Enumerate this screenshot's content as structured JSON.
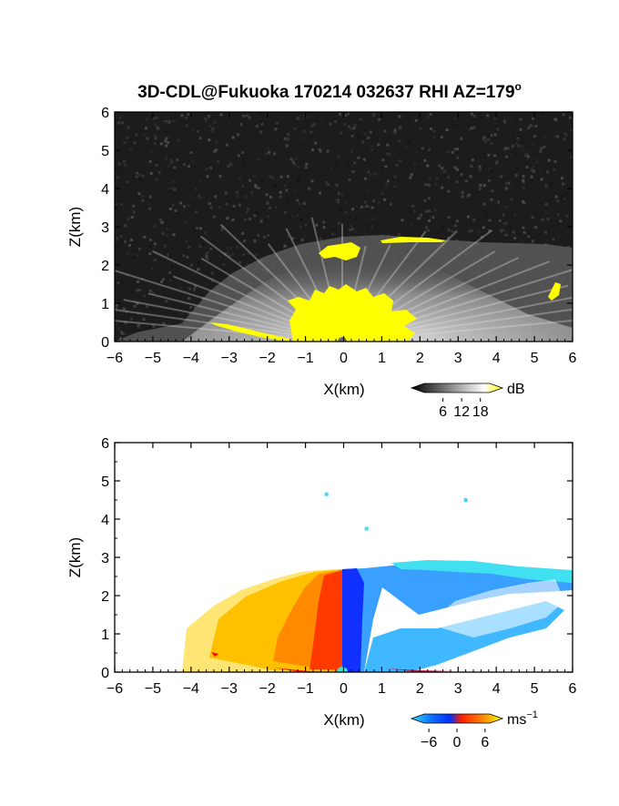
{
  "figure": {
    "title": "3D-CDL@Fukuoka 170214 032637 RHI AZ=179",
    "title_degree": "o"
  },
  "chart_data": [
    {
      "type": "heatmap",
      "panel": "top",
      "quantity": "backscatter intensity",
      "xlabel": "X(km)",
      "ylabel": "Z(km)",
      "xlim": [
        -6,
        6
      ],
      "ylim": [
        0,
        6
      ],
      "xticks": [
        -6,
        -5,
        -4,
        -3,
        -2,
        -1,
        0,
        1,
        2,
        3,
        4,
        5,
        6
      ],
      "yticks": [
        0,
        1,
        2,
        3,
        4,
        5,
        6
      ],
      "background_color": "#1c1c1c",
      "colorbar": {
        "unit": "dB",
        "ticks": [
          6,
          12,
          18
        ],
        "range": [
          0,
          21
        ],
        "colors": [
          "#000000",
          "#ffffff",
          "#ffff00"
        ]
      },
      "features": [
        {
          "label": "near-range high intensity (yellow)",
          "x_range": [
            -1.2,
            1.7
          ],
          "z_range": [
            0,
            1.3
          ]
        },
        {
          "label": "upper haze layer top (km)",
          "x": [
            -3.0,
            -2.0,
            -1.0,
            0,
            1.0,
            2.0,
            3.0,
            4.0,
            5.0,
            6.0
          ],
          "z": [
            1.9,
            2.35,
            2.55,
            2.7,
            2.8,
            2.8,
            2.75,
            2.7,
            2.6,
            2.45
          ]
        },
        {
          "label": "yellow patch",
          "x": -0.2,
          "z": 2.35
        },
        {
          "label": "yellow layer",
          "x_range": [
            1.0,
            2.6
          ],
          "z": 2.7
        },
        {
          "label": "yellow patch",
          "x": 5.5,
          "z": 1.35
        }
      ]
    },
    {
      "type": "heatmap",
      "panel": "bottom",
      "quantity": "radial velocity",
      "xlabel": "X(km)",
      "ylabel": "Z(km)",
      "xlim": [
        -6,
        6
      ],
      "ylim": [
        0,
        6
      ],
      "xticks": [
        -6,
        -5,
        -4,
        -3,
        -2,
        -1,
        0,
        1,
        2,
        3,
        4,
        5,
        6
      ],
      "yticks": [
        0,
        1,
        2,
        3,
        4,
        5,
        6
      ],
      "colorbar": {
        "unit": "ms",
        "unit_exponent": "−1",
        "ticks": [
          "−6",
          "0",
          "6"
        ],
        "range": [
          -7,
          7
        ],
        "colors": [
          "#30d8ff",
          "#0030ff",
          "#ff2000",
          "#ffff00"
        ]
      },
      "features": [
        {
          "label": "positive velocity region",
          "x_range": [
            -4.3,
            0.0
          ],
          "z_range": [
            0,
            2.6
          ],
          "value_range": [
            1,
            6
          ]
        },
        {
          "label": "negative velocity region",
          "x_range": [
            0.0,
            6.0
          ],
          "z_range": [
            0,
            2.9
          ],
          "value_range": [
            -6,
            -2
          ]
        },
        {
          "label": "isolated points",
          "x": [
            -0.45,
            3.2,
            0.6
          ],
          "z": [
            4.65,
            4.5,
            3.75
          ]
        }
      ]
    }
  ]
}
